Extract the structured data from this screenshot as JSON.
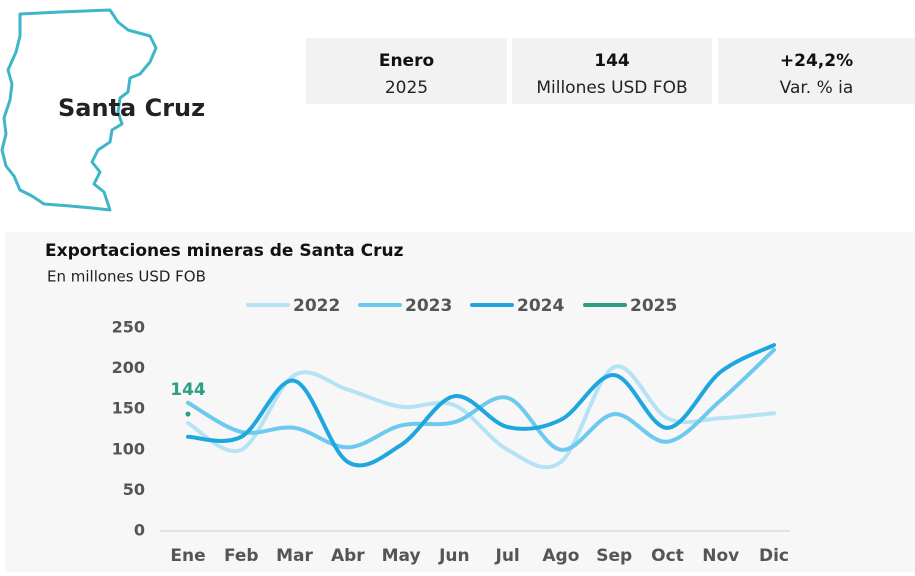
{
  "header": {
    "title": "Santa Cruz"
  },
  "kpis": [
    {
      "top": "Enero",
      "bottom": "2025"
    },
    {
      "top": "144",
      "bottom": "Millones USD FOB"
    },
    {
      "top": "+24,2%",
      "bottom": "Var. % ia"
    }
  ],
  "chart_data": {
    "type": "line",
    "title": "Exportaciones mineras de Santa Cruz",
    "subtitle": "En millones USD FOB",
    "categories": [
      "Ene",
      "Feb",
      "Mar",
      "Abr",
      "May",
      "Jun",
      "Jul",
      "Ago",
      "Sep",
      "Oct",
      "Nov",
      "Dic"
    ],
    "series": [
      {
        "name": "2022",
        "color": "#b5e3f5",
        "values": [
          133,
          100,
          192,
          174,
          153,
          155,
          100,
          85,
          202,
          139,
          139,
          145
        ]
      },
      {
        "name": "2023",
        "color": "#6ec9ee",
        "values": [
          158,
          122,
          127,
          103,
          130,
          134,
          164,
          100,
          144,
          110,
          161,
          223
        ]
      },
      {
        "name": "2024",
        "color": "#1ea7df",
        "values": [
          116,
          116,
          185,
          85,
          106,
          166,
          128,
          137,
          192,
          127,
          196,
          229
        ]
      },
      {
        "name": "2025",
        "color": "#2e9e84",
        "values": [
          144,
          null,
          null,
          null,
          null,
          null,
          null,
          null,
          null,
          null,
          null,
          null
        ]
      }
    ],
    "ylim": [
      0,
      250
    ],
    "yticks": [
      0,
      50,
      100,
      150,
      200,
      250
    ],
    "grid": false,
    "legend": "top"
  }
}
